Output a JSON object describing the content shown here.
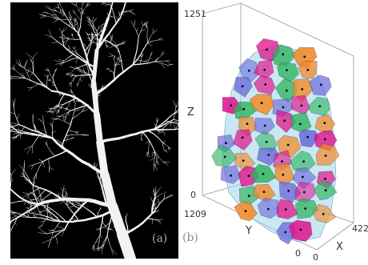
{
  "panel_a": {
    "label": "(a)",
    "label_color": "#a8a8a8",
    "background": "#000000",
    "tree_color": "#f2f2f2",
    "subject": "binarized 3D tree point cloud rendering"
  },
  "panel_b": {
    "label": "(b)",
    "label_color": "#8a8a8a",
    "axes": {
      "z_label": "Z",
      "y_label": "Y",
      "x_label": "X",
      "z_max": "1251",
      "z_min": "0",
      "y_max": "1209",
      "y_min": "0",
      "x_min": "0",
      "x_max": "422"
    },
    "palette": [
      "#e0148c",
      "#3c44c8",
      "#8c3cc8",
      "#2cb45c",
      "#74d0ec",
      "#e8d020",
      "#f08c2c",
      "#18b4a8",
      "#c83c90",
      "#6c6cdc",
      "#a4d84c",
      "#2c84dc"
    ]
  }
}
